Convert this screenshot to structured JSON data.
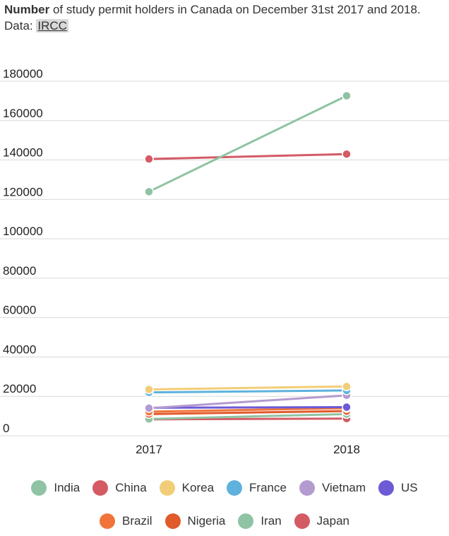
{
  "header": {
    "title_bold": "Number",
    "title_rest": " of study permit holders in Canada on December 31st 2017 and 2018.",
    "source_prefix": "Data: ",
    "source_link": "IRCC"
  },
  "chart_data": {
    "type": "line",
    "title": "Number of study permit holders in Canada on December 31st 2017 and 2018.",
    "categories": [
      "2017",
      "2018"
    ],
    "ylim": [
      0,
      180000
    ],
    "yticks": [
      0,
      20000,
      40000,
      60000,
      80000,
      100000,
      120000,
      140000,
      160000,
      180000
    ],
    "ytick_labels": [
      "0",
      "20000",
      "40000",
      "60000",
      "80000",
      "100000",
      "120000",
      "140000",
      "160000",
      "180000"
    ],
    "grid": true,
    "legend_position": "bottom",
    "series": [
      {
        "name": "India",
        "color": "#8fc3a3",
        "values": [
          123900,
          172600
        ]
      },
      {
        "name": "China",
        "color": "#d45a64",
        "values": [
          140500,
          143000
        ]
      },
      {
        "name": "Korea",
        "color": "#f2cd78",
        "values": [
          23500,
          25000
        ]
      },
      {
        "name": "France",
        "color": "#5eb2dd",
        "values": [
          22000,
          23000
        ]
      },
      {
        "name": "Vietnam",
        "color": "#b39bd0",
        "values": [
          14000,
          20500
        ]
      },
      {
        "name": "US",
        "color": "#6c5ad6",
        "values": [
          14200,
          14500
        ]
      },
      {
        "name": "Brazil",
        "color": "#f0743a",
        "values": [
          12200,
          14000
        ]
      },
      {
        "name": "Nigeria",
        "color": "#e05a2c",
        "values": [
          11000,
          12500
        ]
      },
      {
        "name": "Iran",
        "color": "#8fc3a3",
        "values": [
          8500,
          11000
        ]
      },
      {
        "name": "Japan",
        "color": "#d45a64",
        "values": [
          8300,
          8700
        ]
      }
    ]
  },
  "legend": {
    "row1": [
      {
        "label": "India",
        "color": "#8fc3a3"
      },
      {
        "label": "China",
        "color": "#d45a64"
      },
      {
        "label": "Korea",
        "color": "#f2cd78"
      },
      {
        "label": "France",
        "color": "#5eb2dd"
      },
      {
        "label": "Vietnam",
        "color": "#b39bd0"
      },
      {
        "label": "US",
        "color": "#6c5ad6"
      }
    ],
    "row2": [
      {
        "label": "Brazil",
        "color": "#f0743a"
      },
      {
        "label": "Nigeria",
        "color": "#e05a2c"
      },
      {
        "label": "Iran",
        "color": "#8fc3a3"
      },
      {
        "label": "Japan",
        "color": "#d45a64"
      }
    ]
  }
}
